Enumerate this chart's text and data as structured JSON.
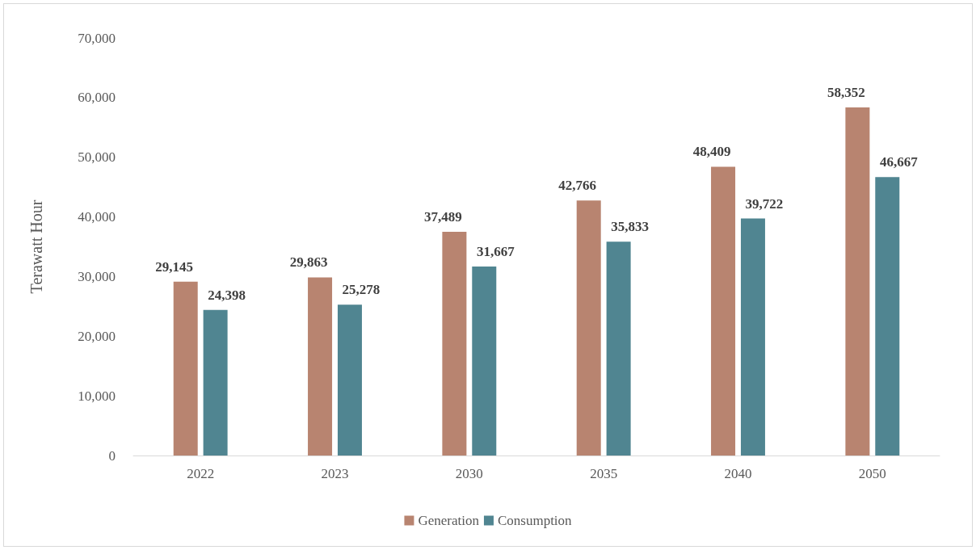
{
  "chart_data": {
    "type": "bar",
    "ylabel": "Terawatt Hour",
    "categories": [
      "2022",
      "2023",
      "2030",
      "2035",
      "2040",
      "2050"
    ],
    "series": [
      {
        "name": "Generation",
        "color": "#b88470",
        "values": [
          29145,
          29863,
          37489,
          42766,
          48409,
          58352
        ],
        "value_labels": [
          "29,145",
          "29,863",
          "37,489",
          "42,766",
          "48,409",
          "58,352"
        ]
      },
      {
        "name": "Consumption",
        "color": "#508591",
        "values": [
          24398,
          25278,
          31667,
          35833,
          39722,
          46667
        ],
        "value_labels": [
          "24,398",
          "25,278",
          "31,667",
          "35,833",
          "39,722",
          "46,667"
        ]
      }
    ],
    "ylim": [
      0,
      70000
    ],
    "yticks": [
      0,
      {
        "value": 10000,
        "label": "10,000"
      },
      {
        "value": 20000,
        "label": "20,000"
      },
      {
        "value": 30000,
        "label": "30,000"
      },
      {
        "value": 40000,
        "label": "40,000"
      },
      {
        "value": 50000,
        "label": "50,000"
      },
      {
        "value": 60000,
        "label": "60,000"
      },
      {
        "value": 70000,
        "label": "70,000"
      }
    ],
    "grid": false,
    "legend": "bottom"
  }
}
